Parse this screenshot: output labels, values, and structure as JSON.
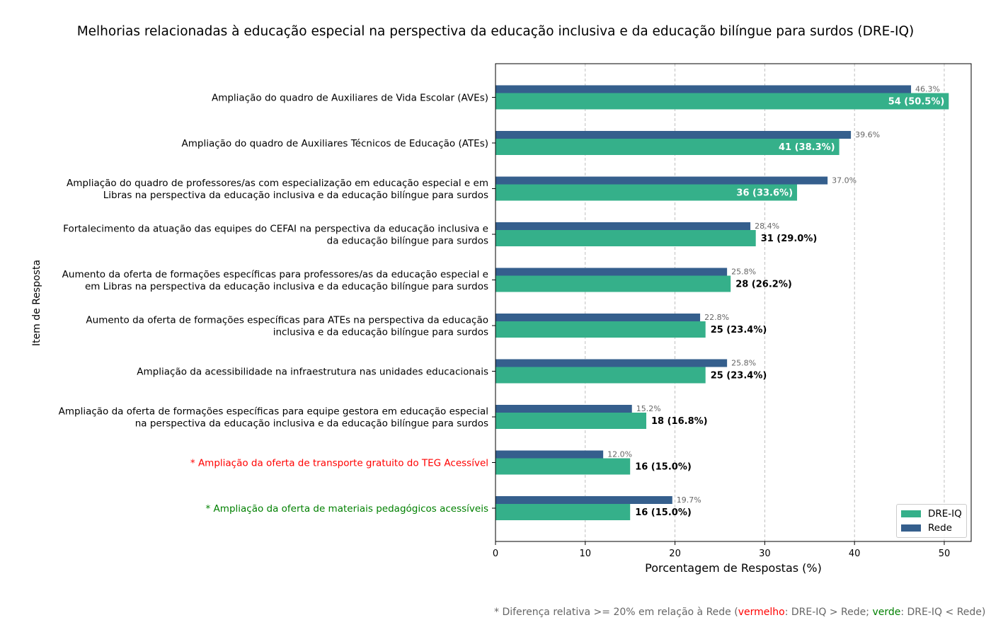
{
  "title": "Melhorias relacionadas à educação especial na perspectiva da educação inclusiva e da educação bilíngue para surdos (DRE-IQ)",
  "footnote": {
    "prefix": "* Diferença relativa >= 20% em relação à Rede (",
    "red_word": "vermelho",
    "middle": ": DRE-IQ > Rede; ",
    "green_word": "verde",
    "suffix": ": DRE-IQ < Rede)"
  },
  "colors": {
    "dre": "#35b08a",
    "rede": "#355f8d",
    "red": "#ff0000",
    "green": "#008000",
    "grid": "#b0b0b0"
  },
  "legend": {
    "placement": "lower-right",
    "items": [
      {
        "label": "DRE-IQ"
      },
      {
        "label": "Rede"
      }
    ]
  },
  "chart_data": {
    "type": "bar",
    "orientation": "horizontal",
    "title": "Melhorias relacionadas à educação especial na perspectiva da educação inclusiva e da educação bilíngue para surdos (DRE-IQ)",
    "xlabel": "Porcentagem de Respostas (%)",
    "ylabel": "Item de Resposta",
    "xlim": [
      0,
      53
    ],
    "xticks": [
      "0",
      "10",
      "20",
      "30",
      "40",
      "50"
    ],
    "grid": "x-dashed",
    "categories": [
      {
        "lines": [
          "Ampliação do quadro de Auxiliares de Vida Escolar (AVEs)"
        ],
        "highlight": ""
      },
      {
        "lines": [
          "Ampliação do quadro de Auxiliares Técnicos de Educação (ATEs)"
        ],
        "highlight": ""
      },
      {
        "lines": [
          "Ampliação do quadro de professores/as com especialização em educação especial e em",
          "Libras na perspectiva da educação inclusiva e da educação bilíngue para surdos"
        ],
        "highlight": ""
      },
      {
        "lines": [
          "Fortalecimento da atuação das equipes do CEFAI na perspectiva da educação inclusiva e",
          "da educação bilíngue para surdos"
        ],
        "highlight": ""
      },
      {
        "lines": [
          "Aumento da oferta de formações específicas para professores/as da educação especial e",
          "em Libras na perspectiva da educação inclusiva e da educação bilíngue para surdos"
        ],
        "highlight": ""
      },
      {
        "lines": [
          "Aumento da oferta de formações específicas para ATEs na perspectiva da educação",
          "inclusiva e da educação bilíngue para surdos"
        ],
        "highlight": ""
      },
      {
        "lines": [
          "Ampliação da acessibilidade na infraestrutura nas unidades educacionais"
        ],
        "highlight": ""
      },
      {
        "lines": [
          "Ampliação da oferta de formações específicas para equipe gestora em educação especial",
          "na perspectiva da educação inclusiva e da educação bilíngue para surdos"
        ],
        "highlight": ""
      },
      {
        "lines": [
          "* Ampliação da oferta de transporte gratuito do TEG Acessível"
        ],
        "highlight": "red"
      },
      {
        "lines": [
          "* Ampliação da oferta de materiais pedagógicos acessíveis"
        ],
        "highlight": "green"
      }
    ],
    "series": [
      {
        "name": "DRE-IQ",
        "values": [
          50.5,
          38.3,
          33.6,
          29.0,
          26.2,
          23.4,
          23.4,
          16.8,
          15.0,
          15.0
        ],
        "labels": [
          "54 (50.5%)",
          "41 (38.3%)",
          "36 (33.6%)",
          "31 (29.0%)",
          "28 (26.2%)",
          "25 (23.4%)",
          "25 (23.4%)",
          "18 (16.8%)",
          "16 (15.0%)",
          "16 (15.0%)"
        ]
      },
      {
        "name": "Rede",
        "values": [
          46.3,
          39.6,
          37.0,
          28.4,
          25.8,
          22.8,
          25.8,
          15.2,
          12.0,
          19.7
        ],
        "labels": [
          "46.3%",
          "39.6%",
          "37.0%",
          "28.4%",
          "25.8%",
          "22.8%",
          "25.8%",
          "15.2%",
          "12.0%",
          "19.7%"
        ]
      }
    ]
  }
}
